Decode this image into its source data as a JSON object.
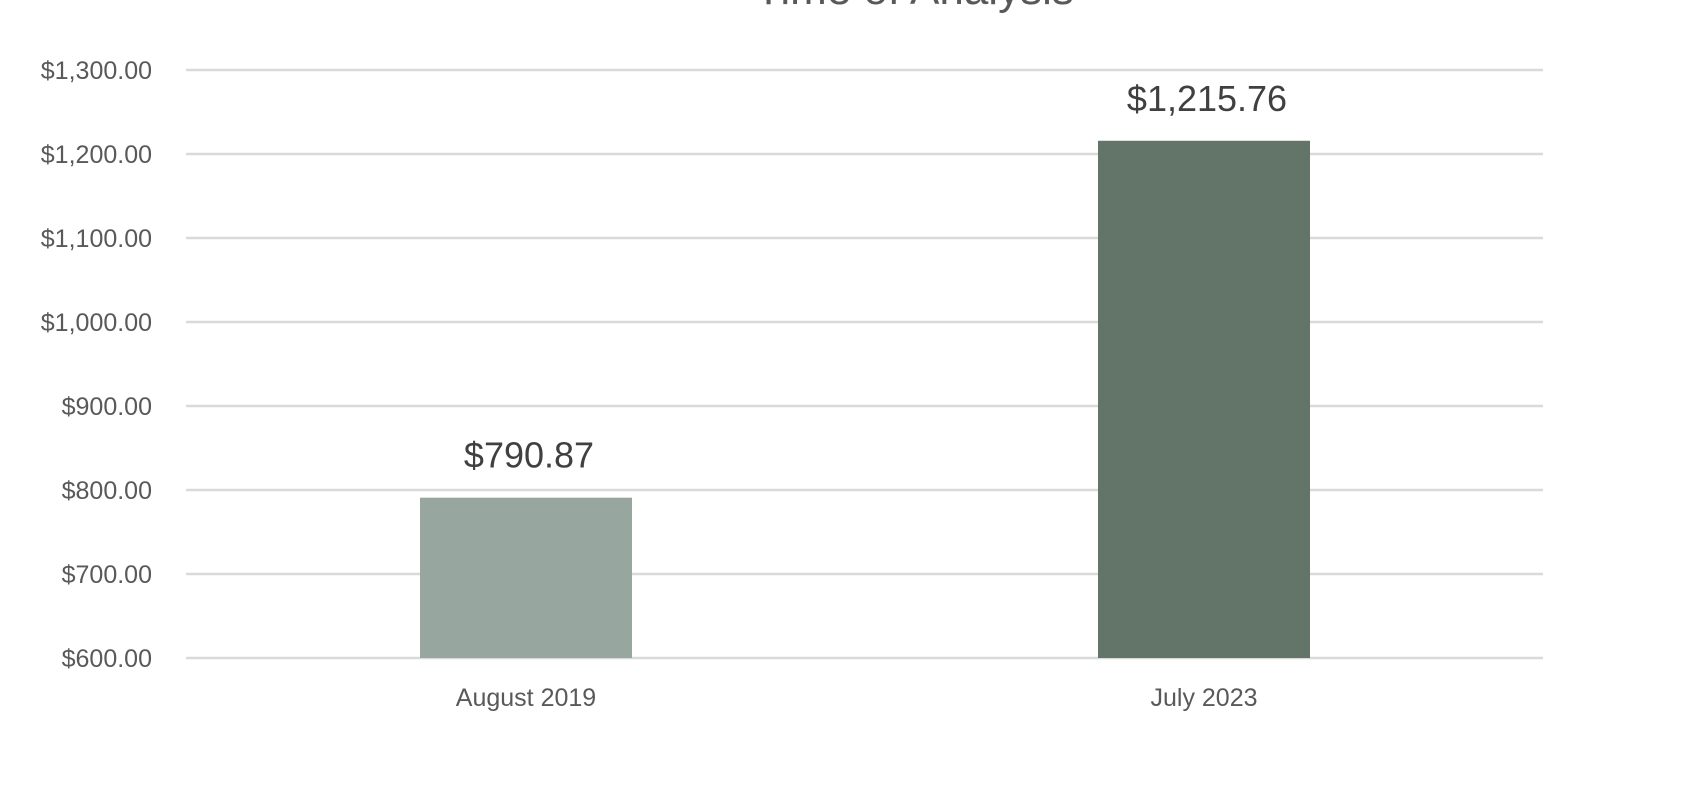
{
  "chart_data": {
    "type": "bar",
    "title": "Time of Analysis",
    "xlabel": "",
    "ylabel": "",
    "categories": [
      "August 2019",
      "July 2023"
    ],
    "values": [
      790.87,
      1215.76
    ],
    "data_labels": [
      "$790.87",
      "$1,215.76"
    ],
    "bar_colors": [
      "#97a79f",
      "#637468"
    ],
    "ylim": [
      600,
      1300
    ],
    "ytick_values": [
      600,
      700,
      800,
      900,
      1000,
      1100,
      1200,
      1300
    ],
    "ytick_labels": [
      "$600.00",
      "$700.00",
      "$800.00",
      "$900.00",
      "$1,000.00",
      "$1,100.00",
      "$1,200.00",
      "$1,300.00"
    ],
    "grid": true,
    "legend": "none"
  }
}
